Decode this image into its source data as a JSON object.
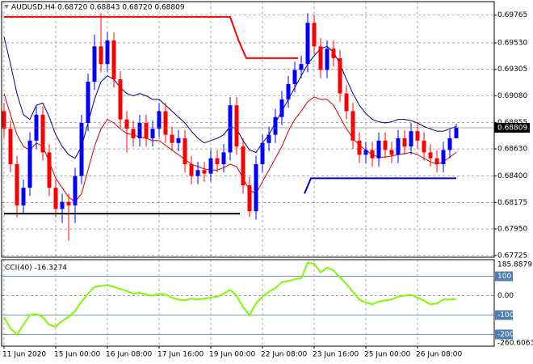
{
  "chart_data": {
    "type": "candlestick",
    "title": "AUDUSD,H4  0.68720 0.68843 0.68720 0.68809",
    "bull_color": "#0000ff",
    "bear_color": "#ff0000",
    "ylim": [
      0.6771,
      0.6988
    ],
    "yticks": [
      0.69765,
      {
        "value": 0.6953,
        "label": "0.69530"
      },
      0.69305,
      {
        "value": 0.6908,
        "label": "0.69080"
      },
      0.68855,
      {
        "value": 0.6863,
        "label": "0.68630"
      },
      {
        "value": 0.684,
        "label": "0.68400"
      },
      0.68175,
      {
        "value": 0.6795,
        "label": "0.67950"
      },
      0.67725
    ],
    "grid": true,
    "xticks": [
      {
        "value": 0,
        "label": "11 Jun 2020"
      },
      {
        "value": 8,
        "label": "15 Jun 00:00"
      },
      {
        "value": 16,
        "label": "16 Jun 08:00"
      },
      {
        "value": 24,
        "label": "17 Jun 16:00"
      },
      {
        "value": 32,
        "label": "19 Jun 00:00"
      },
      {
        "value": 40,
        "label": "22 Jun 08:00"
      },
      {
        "value": 48,
        "label": "23 Jun 16:00"
      },
      {
        "value": 56,
        "label": "25 Jun 00:00"
      },
      {
        "value": 64,
        "label": "26 Jun 08:00"
      }
    ],
    "open": [
      0.6895,
      0.688,
      0.685,
      0.6815,
      0.683,
      0.687,
      0.6892,
      0.686,
      0.683,
      0.6812,
      0.6818,
      0.6815,
      0.684,
      0.6885,
      0.692,
      0.695,
      0.6935,
      0.6955,
      0.6922,
      0.6888,
      0.688,
      0.6872,
      0.6885,
      0.6872,
      0.688,
      0.6895,
      0.6875,
      0.6868,
      0.6872,
      0.685,
      0.684,
      0.6845,
      0.6842,
      0.6855,
      0.685,
      0.686,
      0.69,
      0.6865,
      0.6832,
      0.681,
      0.685,
      0.6868,
      0.6875,
      0.689,
      0.6905,
      0.6918,
      0.693,
      0.6935,
      0.697,
      0.695,
      0.693,
      0.6948,
      0.694,
      0.691,
      0.6895,
      0.687,
      0.6858,
      0.6862,
      0.6855,
      0.687,
      0.6862,
      0.6858,
      0.6872,
      0.6865,
      0.6878,
      0.687,
      0.686,
      0.6855,
      0.685,
      0.6862,
      0.6872
    ],
    "high": [
      0.6902,
      0.6887,
      0.6857,
      0.6837,
      0.6877,
      0.6899,
      0.6899,
      0.6867,
      0.6837,
      0.6825,
      0.6825,
      0.6847,
      0.6892,
      0.6927,
      0.696,
      0.6978,
      0.6962,
      0.6962,
      0.6929,
      0.6895,
      0.6887,
      0.6892,
      0.6892,
      0.6887,
      0.6902,
      0.6902,
      0.6882,
      0.6879,
      0.6879,
      0.6857,
      0.6852,
      0.6852,
      0.6862,
      0.6862,
      0.6867,
      0.6907,
      0.6907,
      0.6872,
      0.6839,
      0.6857,
      0.6875,
      0.6882,
      0.6897,
      0.6912,
      0.6925,
      0.6937,
      0.6942,
      0.6978,
      0.6977,
      0.6957,
      0.6955,
      0.6955,
      0.6947,
      0.6917,
      0.6902,
      0.6877,
      0.6869,
      0.6869,
      0.6877,
      0.6877,
      0.6869,
      0.6879,
      0.6879,
      0.6885,
      0.6885,
      0.6877,
      0.6867,
      0.6862,
      0.6869,
      0.6879,
      0.68843
    ],
    "low": [
      0.6873,
      0.6843,
      0.6805,
      0.6808,
      0.6823,
      0.6863,
      0.6853,
      0.6823,
      0.6805,
      0.68,
      0.6785,
      0.68,
      0.6833,
      0.6878,
      0.6913,
      0.6928,
      0.6928,
      0.6915,
      0.6881,
      0.686,
      0.6865,
      0.6865,
      0.6865,
      0.6865,
      0.6873,
      0.6868,
      0.6861,
      0.6861,
      0.6843,
      0.6833,
      0.6833,
      0.6835,
      0.6835,
      0.6843,
      0.6843,
      0.6853,
      0.6858,
      0.6825,
      0.6805,
      0.6803,
      0.6843,
      0.6861,
      0.6868,
      0.6883,
      0.6898,
      0.6911,
      0.6923,
      0.6928,
      0.6943,
      0.6923,
      0.6923,
      0.6933,
      0.6903,
      0.6888,
      0.6863,
      0.6851,
      0.6851,
      0.6848,
      0.6848,
      0.6855,
      0.6851,
      0.6851,
      0.6858,
      0.6858,
      0.6863,
      0.6853,
      0.6848,
      0.6843,
      0.6843,
      0.6855,
      0.6872
    ],
    "close": [
      0.688,
      0.685,
      0.6815,
      0.683,
      0.687,
      0.6892,
      0.686,
      0.683,
      0.6812,
      0.6818,
      0.6815,
      0.684,
      0.6885,
      0.692,
      0.695,
      0.6935,
      0.6955,
      0.6922,
      0.6888,
      0.688,
      0.6872,
      0.6885,
      0.6872,
      0.688,
      0.6895,
      0.6875,
      0.6868,
      0.6872,
      0.685,
      0.684,
      0.6845,
      0.6842,
      0.6855,
      0.685,
      0.686,
      0.69,
      0.6865,
      0.6832,
      0.681,
      0.685,
      0.6868,
      0.6875,
      0.689,
      0.6905,
      0.6918,
      0.693,
      0.6935,
      0.697,
      0.695,
      0.693,
      0.6948,
      0.694,
      0.691,
      0.6895,
      0.687,
      0.6858,
      0.6862,
      0.6855,
      0.687,
      0.6862,
      0.6858,
      0.6872,
      0.6865,
      0.6878,
      0.687,
      0.686,
      0.6855,
      0.685,
      0.6862,
      0.6872,
      0.68809
    ],
    "lines": [
      {
        "color": "#000080",
        "values": [
          0.6958,
          0.6935,
          0.691,
          0.6892,
          0.6888,
          0.69,
          0.6902,
          0.689,
          0.6875,
          0.6865,
          0.6858,
          0.6855,
          0.6865,
          0.6885,
          0.6905,
          0.692,
          0.6925,
          0.6922,
          0.6915,
          0.691,
          0.6908,
          0.691,
          0.6908,
          0.6905,
          0.6905,
          0.69,
          0.6895,
          0.689,
          0.6885,
          0.6878,
          0.6872,
          0.6868,
          0.687,
          0.6872,
          0.6875,
          0.6882,
          0.688,
          0.687,
          0.6862,
          0.686,
          0.6868,
          0.6875,
          0.6885,
          0.6895,
          0.6905,
          0.6915,
          0.6925,
          0.6935,
          0.6942,
          0.6948,
          0.695,
          0.6945,
          0.6935,
          0.6922,
          0.691,
          0.69,
          0.6893,
          0.6888,
          0.6886,
          0.6885,
          0.6886,
          0.6888,
          0.6888,
          0.6887,
          0.6885,
          0.6882,
          0.688,
          0.6878,
          0.6878,
          0.688,
          0.6882
        ]
      },
      {
        "color": "#d00000",
        "values": [
          0.691,
          0.6892,
          0.6875,
          0.6865,
          0.6862,
          0.6868,
          0.6865,
          0.6852,
          0.6838,
          0.683,
          0.6822,
          0.6818,
          0.6825,
          0.6845,
          0.6865,
          0.688,
          0.6888,
          0.6885,
          0.688,
          0.6876,
          0.6875,
          0.6873,
          0.6872,
          0.687,
          0.687,
          0.6866,
          0.6862,
          0.6858,
          0.6854,
          0.685,
          0.6848,
          0.6846,
          0.6845,
          0.6845,
          0.6847,
          0.685,
          0.6848,
          0.6838,
          0.6828,
          0.6825,
          0.6835,
          0.6845,
          0.6855,
          0.6865,
          0.6878,
          0.6888,
          0.6895,
          0.6903,
          0.6907,
          0.6905,
          0.6905,
          0.69,
          0.689,
          0.688,
          0.6872,
          0.6866,
          0.6862,
          0.6858,
          0.6856,
          0.6856,
          0.6857,
          0.6858,
          0.6859,
          0.686,
          0.6858,
          0.6855,
          0.6852,
          0.685,
          0.6852,
          0.6856,
          0.686
        ]
      }
    ],
    "levels": [
      {
        "color": "#ff0000",
        "points": [
          [
            0,
            0.6975
          ],
          [
            35,
            0.6975
          ],
          [
            36.3,
            0.6955
          ],
          [
            37.5,
            0.694
          ],
          [
            45.5,
            0.694
          ]
        ]
      },
      {
        "color": "#000000",
        "points": [
          [
            0,
            0.6808
          ],
          [
            36.5,
            0.6808
          ]
        ]
      },
      {
        "color": "#0000cd",
        "points": [
          [
            46.5,
            0.6825
          ],
          [
            47.5,
            0.6838
          ],
          [
            70,
            0.6838
          ]
        ]
      }
    ],
    "indicator": {
      "type": "line",
      "label": "CCI(40) -16.3274",
      "color": "#7cfc00",
      "ylim": [
        -260.6063,
        185.8879
      ],
      "yticks": [
        185.8879,
        100,
        {
          "value": 0,
          "label": "0.00"
        },
        -100,
        -200,
        -260.6063
      ],
      "levels": [
        100,
        -100,
        -200
      ],
      "values": [
        -110,
        -170,
        -200,
        -150,
        -100,
        -95,
        -110,
        -150,
        -160,
        -130,
        -110,
        -80,
        -30,
        10,
        45,
        50,
        55,
        45,
        35,
        25,
        10,
        15,
        5,
        0,
        10,
        5,
        -10,
        -20,
        -25,
        -15,
        -20,
        -15,
        -10,
        -5,
        10,
        30,
        0,
        -60,
        -100,
        -40,
        -5,
        20,
        40,
        70,
        75,
        85,
        90,
        170,
        165,
        120,
        145,
        130,
        95,
        60,
        20,
        -20,
        -35,
        -45,
        -30,
        -25,
        -20,
        -5,
        0,
        5,
        -10,
        -25,
        -45,
        -40,
        -20,
        -20,
        -16.3274
      ]
    }
  }
}
